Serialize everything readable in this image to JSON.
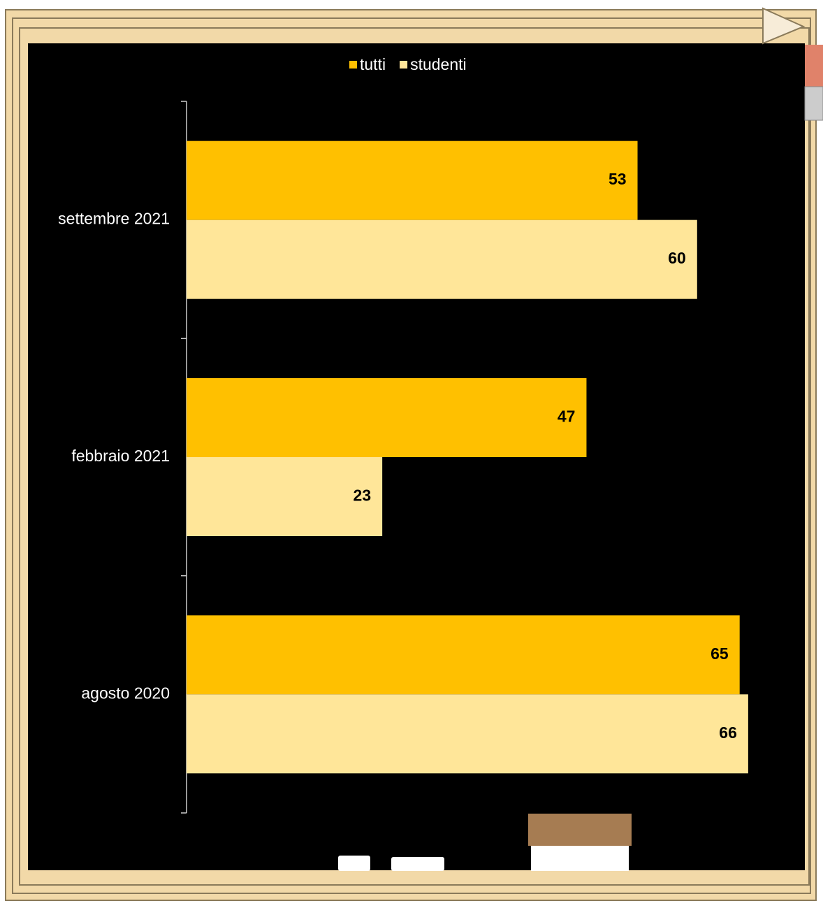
{
  "chart_data": {
    "type": "hbar",
    "categories": [
      "settembre 2021",
      "febbraio 2021",
      "agosto 2020"
    ],
    "series": [
      {
        "name": "tutti",
        "color": "#FFC000",
        "values": [
          53,
          47,
          65
        ]
      },
      {
        "name": "studenti",
        "color": "#FFE699",
        "values": [
          60,
          23,
          66
        ]
      }
    ],
    "legend": "top"
  }
}
